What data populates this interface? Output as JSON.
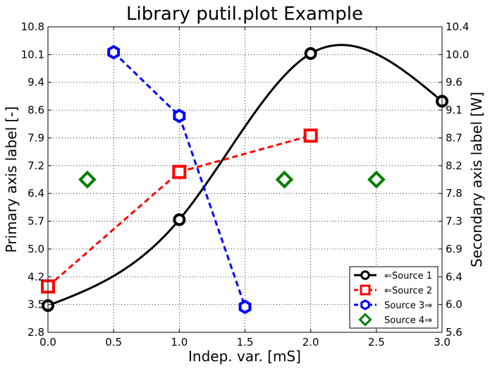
{
  "chart_data": {
    "type": "line",
    "title": "Library putil.plot Example",
    "xlabel": "Indep. var. [mS]",
    "ylabel": "Primary axis label [-]",
    "y2label": "Secondary axis label [W]",
    "xlim": [
      0.0,
      3.0
    ],
    "ylim": [
      2.8,
      10.8
    ],
    "y2lim": [
      5.6,
      10.4
    ],
    "xticks": [
      "0.0",
      "0.5",
      "1.0",
      "1.5",
      "2.0",
      "2.5",
      "3.0"
    ],
    "yticks": [
      "2.8",
      "3.5",
      "4.2",
      "5.0",
      "5.7",
      "6.4",
      "7.2",
      "7.9",
      "8.6",
      "9.4",
      "10.1",
      "10.8"
    ],
    "y2ticks": [
      "5.6",
      "6.0",
      "6.4",
      "6.9",
      "7.3",
      "7.8",
      "8.2",
      "8.7",
      "9.1",
      "9.6",
      "10.0",
      "10.4"
    ],
    "grid": true,
    "legend_position": "bottom-right",
    "series": [
      {
        "name": "⇐Source 1",
        "axis": "primary",
        "color": "#000000",
        "marker": "circle",
        "line": "solid",
        "interpolation": "smooth",
        "x": [
          0.0,
          1.0,
          2.0,
          3.0
        ],
        "y": [
          3.5,
          5.75,
          10.1,
          8.85
        ]
      },
      {
        "name": "⇐Source 2",
        "axis": "primary",
        "color": "#ff0000",
        "marker": "square",
        "line": "dashed",
        "x": [
          0.0,
          1.0,
          2.0
        ],
        "y": [
          4.0,
          7.0,
          7.95
        ]
      },
      {
        "name": "Source 3⇒",
        "axis": "secondary",
        "color": "#0000ff",
        "marker": "hexagon",
        "line": "dashed",
        "x": [
          0.5,
          1.0,
          1.5
        ],
        "y": [
          10.0,
          9.0,
          6.0
        ]
      },
      {
        "name": "Source 4⇒",
        "axis": "secondary",
        "color": "#008000",
        "marker": "diamond",
        "line": "none",
        "x": [
          0.3,
          1.8,
          2.5
        ],
        "y": [
          8.0,
          8.0,
          8.0
        ]
      }
    ]
  }
}
